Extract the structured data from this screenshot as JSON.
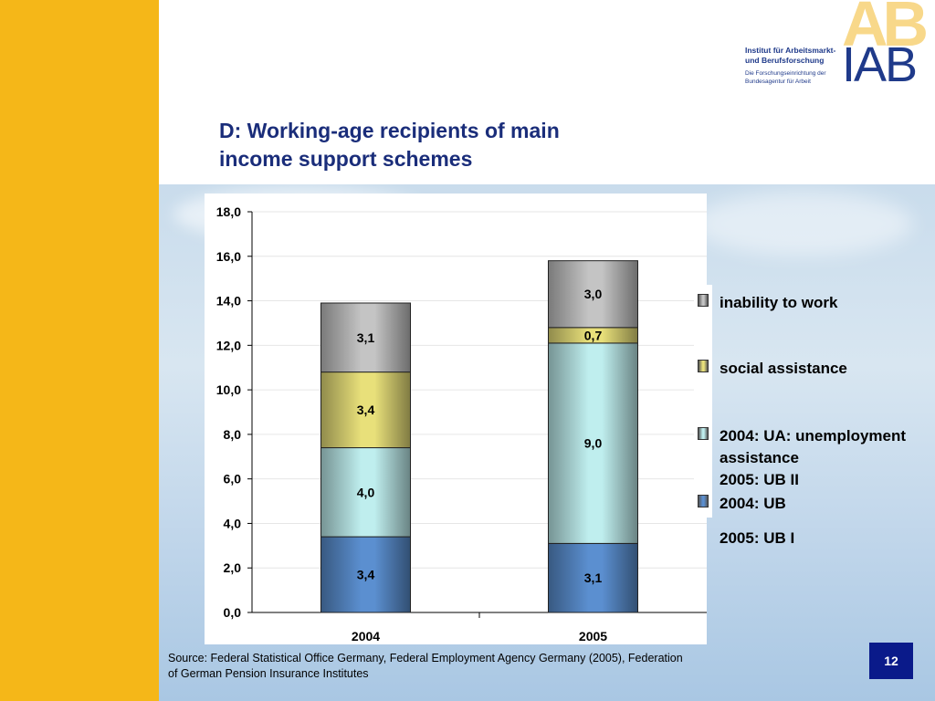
{
  "slide": {
    "title_line1": "D: Working-age recipients of main",
    "title_line2": "income support schemes",
    "source_line1": "Source: Federal Statistical Office Germany, Federal Employment Agency Germany (2005), Federation",
    "source_line2": "of German Pension Insurance Institutes",
    "page_number": "12"
  },
  "logo": {
    "line1": "Institut für Arbeitsmarkt-",
    "line2": "und Berufsforschung",
    "line3": "Die Forschungseinrichtung der",
    "line4": "Bundesagentur für Arbeit",
    "wordmark": "IAB",
    "background_letters": "AB"
  },
  "legend": {
    "items": [
      {
        "lines": [
          "inability to work"
        ],
        "color": "#c4c4c4"
      },
      {
        "lines": [
          "social assistance"
        ],
        "color": "#e8e07a"
      },
      {
        "lines": [
          "2004: UA: unemployment",
          "assistance",
          "2005: UB II"
        ],
        "color": "#bfeeee"
      },
      {
        "lines": [
          "2004: UB",
          "2005: UB I"
        ],
        "color": "#5b8fd0"
      }
    ]
  },
  "colors": {
    "left_band": "#f5b718",
    "title": "#1a2d7a",
    "page_box": "#0a1a8a"
  },
  "chart_data": {
    "type": "bar",
    "stacked": true,
    "categories": [
      "2004",
      "2005"
    ],
    "series": [
      {
        "name": "2004: UB / 2005: UB I",
        "values": [
          3.4,
          3.1
        ],
        "labels": [
          "3,4",
          "3,1"
        ],
        "color": "#5b8fd0"
      },
      {
        "name": "2004: UA: unemployment assistance / 2005: UB II",
        "values": [
          4.0,
          9.0
        ],
        "labels": [
          "4,0",
          "9,0"
        ],
        "color": "#bfeeee"
      },
      {
        "name": "social assistance",
        "values": [
          3.4,
          0.7
        ],
        "labels": [
          "3,4",
          "0,7"
        ],
        "color": "#e8e07a"
      },
      {
        "name": "inability to work",
        "values": [
          3.1,
          3.0
        ],
        "labels": [
          "3,1",
          "3,0"
        ],
        "color": "#c4c4c4"
      }
    ],
    "ylim": [
      0,
      18
    ],
    "yticks": [
      "0,0",
      "2,0",
      "4,0",
      "6,0",
      "8,0",
      "10,0",
      "12,0",
      "14,0",
      "16,0",
      "18,0"
    ],
    "grid": true,
    "legend_position": "right"
  }
}
